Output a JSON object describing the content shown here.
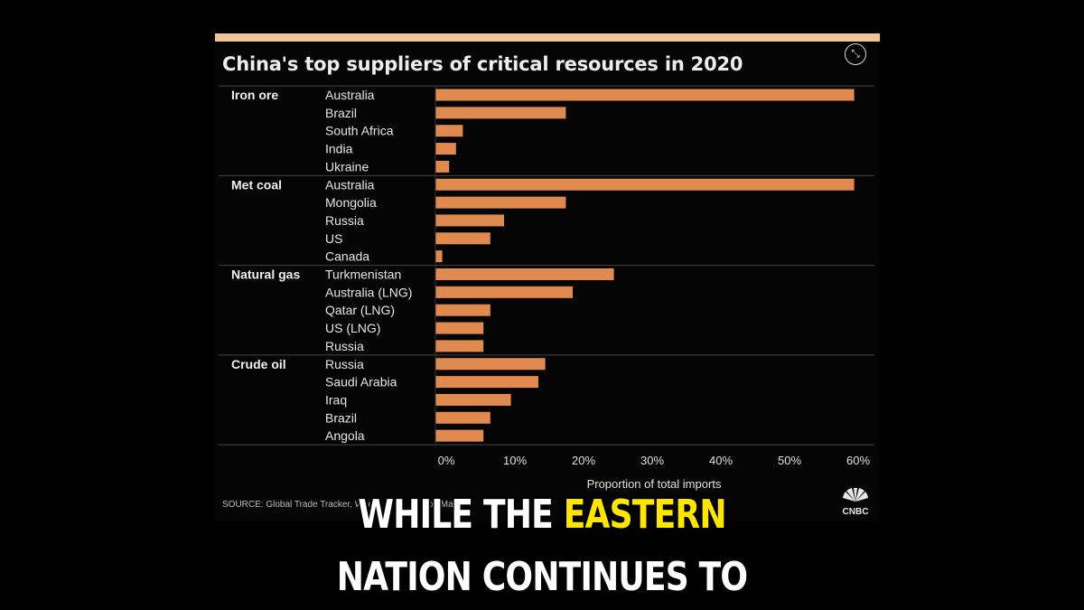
{
  "caption": {
    "line1_prefix": "WHILE THE",
    "line1_highlight": "EASTERN",
    "line2": "NATION CONTINUES TO"
  },
  "source_text": "SOURCE: Global Trade Tracker, Woo",
  "source_text_tail": "od Mack",
  "brand": "CNBC",
  "colors": {
    "bar": "#e08a4f",
    "accent_bar": "#f2c596",
    "caption_highlight": "#ffe600"
  },
  "chart_data": {
    "type": "bar",
    "orientation": "horizontal",
    "title": "China's top suppliers of critical resources in 2020",
    "xlabel": "Proportion of total imports",
    "xlim": [
      0,
      65
    ],
    "ticks": [
      0,
      10,
      20,
      30,
      40,
      50,
      60
    ],
    "tick_labels": [
      "0%",
      "10%",
      "20%",
      "30%",
      "40%",
      "50%",
      "60%"
    ],
    "grid": false,
    "groups": [
      {
        "name": "Iron ore",
        "categories": [
          "Australia",
          "Brazil",
          "South Africa",
          "India",
          "Ukraine"
        ],
        "values": [
          61,
          19,
          4,
          3,
          2
        ]
      },
      {
        "name": "Met coal",
        "categories": [
          "Australia",
          "Mongolia",
          "Russia",
          "US",
          "Canada"
        ],
        "values": [
          61,
          19,
          10,
          8,
          1
        ]
      },
      {
        "name": "Natural gas",
        "categories": [
          "Turkmenistan",
          "Australia (LNG)",
          "Qatar (LNG)",
          "US (LNG)",
          "Russia"
        ],
        "values": [
          26,
          20,
          8,
          7,
          7
        ]
      },
      {
        "name": "Crude oil",
        "categories": [
          "Russia",
          "Saudi Arabia",
          "Iraq",
          "Brazil",
          "Angola"
        ],
        "values": [
          16,
          15,
          11,
          8,
          7
        ]
      }
    ]
  }
}
